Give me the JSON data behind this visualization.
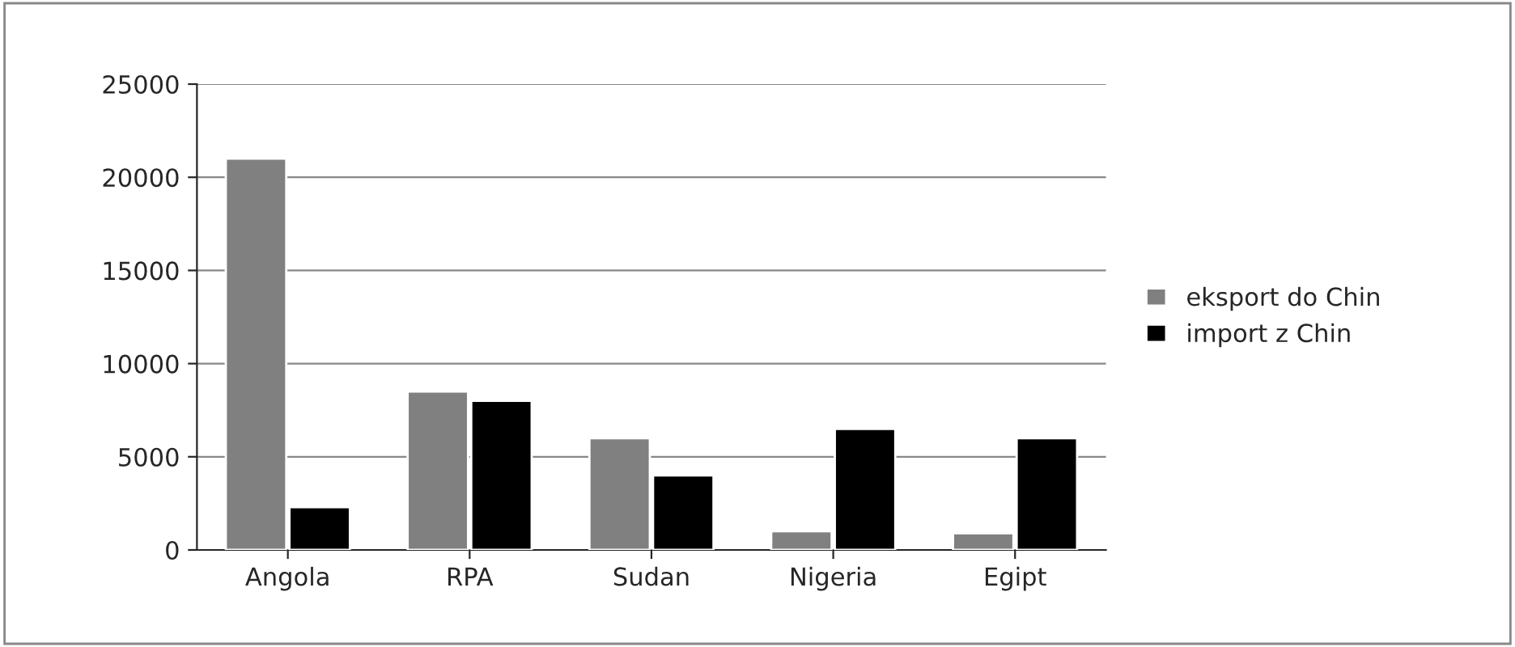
{
  "chart_data": {
    "type": "bar",
    "categories": [
      "Angola",
      "RPA",
      "Sudan",
      "Nigeria",
      "Egipt"
    ],
    "series": [
      {
        "name": "eksport do Chin",
        "color": "#808080",
        "values": [
          21000,
          8500,
          6000,
          1000,
          900
        ]
      },
      {
        "name": "import z Chin",
        "color": "#000000",
        "values": [
          2300,
          8000,
          4000,
          6500,
          6000
        ]
      }
    ],
    "ylim": [
      0,
      25000
    ],
    "yticks": [
      0,
      5000,
      10000,
      15000,
      20000,
      25000
    ],
    "grid": "y",
    "legend": "right"
  }
}
